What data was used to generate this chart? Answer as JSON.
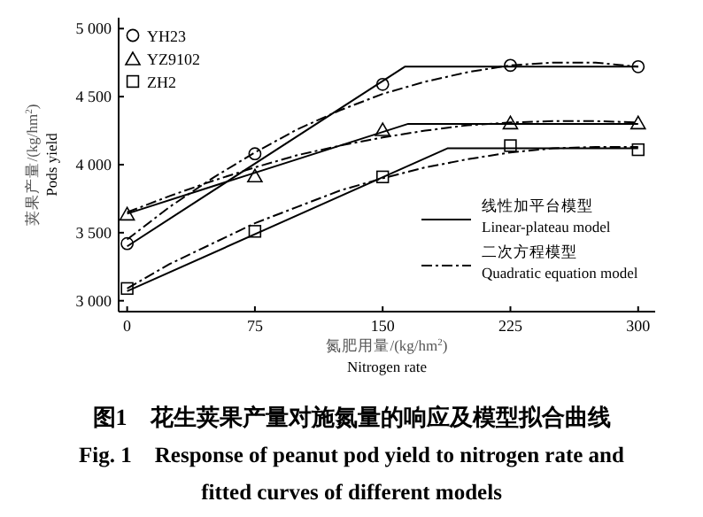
{
  "chart_data": {
    "type": "scatter",
    "title": "图1　花生荚果产量对施氮量的响应及模型拟合曲线",
    "subtitle": "Fig. 1　Response of peanut pod yield to nitrogen rate and fitted curves of different models",
    "xlabel": "氮肥用量/(kg/hm$^{2}$)\nNitrogen rate",
    "ylabel": "荚果产量/(kg/hm$^{2}$)\nPods yield",
    "xlim": [
      -5,
      310
    ],
    "ylim": [
      2920,
      5080
    ],
    "xticks": [
      0,
      75,
      150,
      225,
      300
    ],
    "yticks": [
      {
        "value": 3000,
        "label": "3 000"
      },
      {
        "value": 3500,
        "label": "3 500"
      },
      {
        "value": 4000,
        "label": "4 000"
      },
      {
        "value": 4500,
        "label": "4 500"
      },
      {
        "value": 5000,
        "label": "5 000"
      }
    ],
    "legend": "top left",
    "grid": false,
    "series": [
      {
        "name": "YH23",
        "marker": "circle",
        "color": "#000000",
        "x": [
          0,
          75,
          150,
          225,
          300
        ],
        "values": [
          3420,
          4080,
          4590,
          4730,
          4720
        ]
      },
      {
        "name": "YZ9102",
        "marker": "triangle",
        "color": "#000000",
        "x": [
          0,
          75,
          150,
          225,
          300
        ],
        "values": [
          3640,
          3920,
          4260,
          4310,
          4310
        ]
      },
      {
        "name": "ZH2",
        "marker": "square",
        "color": "#000000",
        "x": [
          0,
          75,
          150,
          225,
          300
        ],
        "values": [
          3090,
          3510,
          3910,
          4140,
          4110
        ]
      },
      {
        "name": "线性加平台模型\nLinear-plateau model",
        "type": "line",
        "line_style": "solid",
        "color": "#000000",
        "x": [
          0,
          163,
          300
        ],
        "values": [
          3400,
          4720,
          4720
        ]
      },
      {
        "type": "line",
        "line_style": "solid",
        "color": "#000000",
        "x": [
          0,
          165,
          300
        ],
        "values": [
          3640,
          4300,
          4300
        ]
      },
      {
        "type": "line",
        "line_style": "solid",
        "color": "#000000",
        "x": [
          0,
          188,
          300
        ],
        "values": [
          3070,
          4120,
          4120
        ]
      },
      {
        "name": "二次方程模型\nQuadratic equation model",
        "type": "line",
        "line_style": "dashdot",
        "color": "#000000",
        "x": [
          0,
          25,
          50,
          75,
          100,
          125,
          150,
          175,
          200,
          225,
          250,
          275,
          300
        ],
        "values": [
          3450,
          3690,
          3900,
          4090,
          4260,
          4400,
          4520,
          4610,
          4680,
          4730,
          4750,
          4750,
          4720
        ]
      },
      {
        "type": "line",
        "line_style": "dashdot",
        "color": "#000000",
        "x": [
          0,
          25,
          50,
          75,
          100,
          125,
          150,
          175,
          200,
          225,
          250,
          275,
          300
        ],
        "values": [
          3650,
          3770,
          3880,
          3980,
          4070,
          4140,
          4200,
          4250,
          4290,
          4310,
          4320,
          4320,
          4310
        ]
      },
      {
        "type": "line",
        "line_style": "dashdot",
        "color": "#000000",
        "x": [
          0,
          25,
          50,
          75,
          100,
          125,
          150,
          175,
          200,
          225,
          250,
          275,
          300
        ],
        "values": [
          3090,
          3270,
          3420,
          3570,
          3690,
          3810,
          3900,
          3980,
          4040,
          4090,
          4120,
          4130,
          4130
        ]
      }
    ]
  }
}
